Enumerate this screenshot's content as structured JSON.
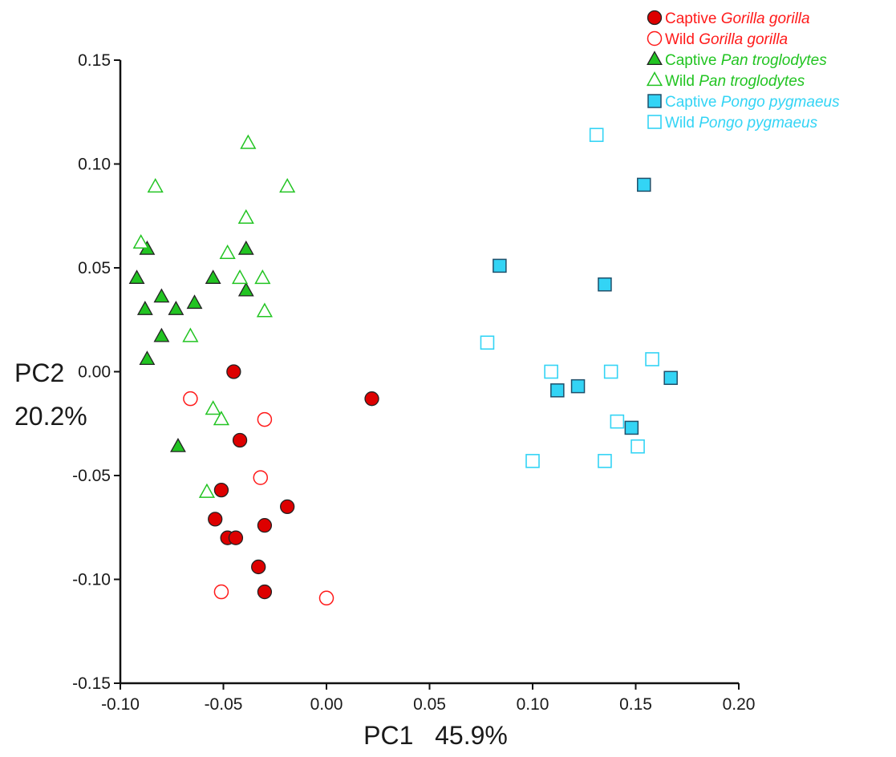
{
  "chart_data": {
    "type": "scatter",
    "xlabel": "PC1   45.9%",
    "ylabel_line1": "PC2",
    "ylabel_line2": "20.2%",
    "xlim": [
      -0.1,
      0.2
    ],
    "ylim": [
      -0.15,
      0.15
    ],
    "x_ticks": [
      {
        "value": -0.1,
        "label": "-0.10"
      },
      {
        "value": -0.05,
        "label": "-0.05"
      },
      {
        "value": 0.0,
        "label": "0.00"
      },
      {
        "value": 0.05,
        "label": "0.05"
      },
      {
        "value": 0.1,
        "label": "0.10"
      },
      {
        "value": 0.15,
        "label": "0.15"
      },
      {
        "value": 0.2,
        "label": "0.20"
      }
    ],
    "y_ticks": [
      {
        "value": 0.15,
        "label": "0.15"
      },
      {
        "value": 0.1,
        "label": "0.10"
      },
      {
        "value": 0.05,
        "label": "0.05"
      },
      {
        "value": 0.0,
        "label": "0.00"
      },
      {
        "value": -0.05,
        "label": "-0.05"
      },
      {
        "value": -0.1,
        "label": "-0.10"
      },
      {
        "value": -0.15,
        "label": "-0.15"
      }
    ],
    "grid": false,
    "legend_position": "top-right",
    "series": [
      {
        "name": "Captive Gorilla gorilla",
        "legend_prefix": "Captive",
        "legend_species": "Gorilla gorilla",
        "marker": "circle",
        "filled": true,
        "color": "#ff1a1a",
        "fill": "#dd0000",
        "points": [
          [
            -0.045,
            0.0
          ],
          [
            0.022,
            -0.013
          ],
          [
            -0.042,
            -0.033
          ],
          [
            -0.051,
            -0.057
          ],
          [
            -0.019,
            -0.065
          ],
          [
            -0.054,
            -0.071
          ],
          [
            -0.03,
            -0.074
          ],
          [
            -0.048,
            -0.08
          ],
          [
            -0.044,
            -0.08
          ],
          [
            -0.033,
            -0.094
          ],
          [
            -0.03,
            -0.106
          ]
        ]
      },
      {
        "name": "Wild Gorilla gorilla",
        "legend_prefix": "Wild",
        "legend_species": "Gorilla gorilla",
        "marker": "circle",
        "filled": false,
        "color": "#ff1a1a",
        "fill": "#ffffff",
        "points": [
          [
            -0.066,
            -0.013
          ],
          [
            -0.03,
            -0.023
          ],
          [
            -0.032,
            -0.051
          ],
          [
            -0.051,
            -0.106
          ],
          [
            0.0,
            -0.109
          ]
        ]
      },
      {
        "name": "Captive Pan troglodytes",
        "legend_prefix": "Captive",
        "legend_species": "Pan troglodytes",
        "marker": "triangle",
        "filled": true,
        "color": "#22c422",
        "fill": "#22c422",
        "points": [
          [
            -0.087,
            0.059
          ],
          [
            -0.039,
            0.059
          ],
          [
            -0.092,
            0.045
          ],
          [
            -0.055,
            0.045
          ],
          [
            -0.039,
            0.039
          ],
          [
            -0.08,
            0.036
          ],
          [
            -0.064,
            0.033
          ],
          [
            -0.088,
            0.03
          ],
          [
            -0.073,
            0.03
          ],
          [
            -0.08,
            0.017
          ],
          [
            -0.087,
            0.006
          ],
          [
            -0.072,
            -0.036
          ]
        ]
      },
      {
        "name": "Wild Pan troglodytes",
        "legend_prefix": "Wild",
        "legend_species": "Pan troglodytes",
        "marker": "triangle",
        "filled": false,
        "color": "#22c422",
        "fill": "#ffffff",
        "points": [
          [
            -0.038,
            0.11
          ],
          [
            -0.083,
            0.089
          ],
          [
            -0.019,
            0.089
          ],
          [
            -0.039,
            0.074
          ],
          [
            -0.09,
            0.062
          ],
          [
            -0.048,
            0.057
          ],
          [
            -0.042,
            0.045
          ],
          [
            -0.031,
            0.045
          ],
          [
            -0.03,
            0.029
          ],
          [
            -0.066,
            0.017
          ],
          [
            -0.055,
            -0.018
          ],
          [
            -0.051,
            -0.023
          ],
          [
            -0.058,
            -0.058
          ]
        ]
      },
      {
        "name": "Captive Pongo pygmaeus",
        "legend_prefix": "Captive",
        "legend_species": "Pongo pygmaeus",
        "marker": "square",
        "filled": true,
        "color": "#1f6f8b",
        "fill": "#33d4f5",
        "points": [
          [
            0.154,
            0.09
          ],
          [
            0.084,
            0.051
          ],
          [
            0.135,
            0.042
          ],
          [
            0.112,
            -0.009
          ],
          [
            0.122,
            -0.007
          ],
          [
            0.167,
            -0.003
          ],
          [
            0.148,
            -0.027
          ]
        ]
      },
      {
        "name": "Wild Pongo pygmaeus",
        "legend_prefix": "Wild",
        "legend_species": "Pongo pygmaeus",
        "marker": "square",
        "filled": false,
        "color": "#33d4f5",
        "fill": "#ffffff",
        "points": [
          [
            0.131,
            0.114
          ],
          [
            0.078,
            0.014
          ],
          [
            0.109,
            0.0
          ],
          [
            0.138,
            0.0
          ],
          [
            0.158,
            0.006
          ],
          [
            0.141,
            -0.024
          ],
          [
            0.151,
            -0.036
          ],
          [
            0.1,
            -0.043
          ],
          [
            0.135,
            -0.043
          ]
        ]
      }
    ]
  },
  "legend_colors": {
    "gorilla": "#ff1a1a",
    "pan": "#22c422",
    "pongo": "#33d4f5"
  }
}
